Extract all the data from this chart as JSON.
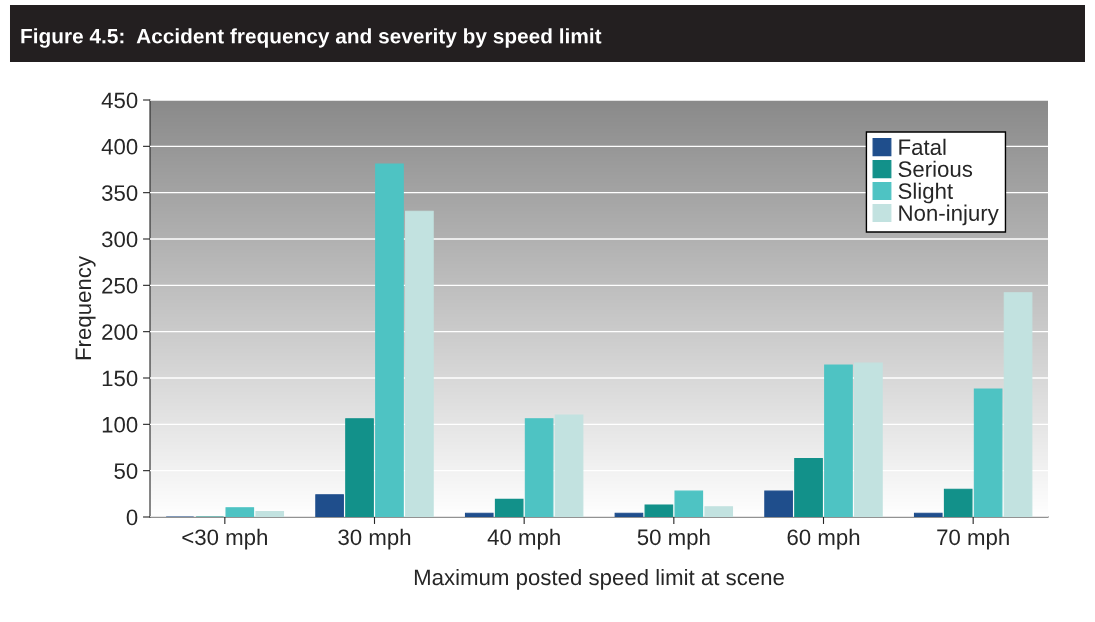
{
  "chart_data": {
    "type": "bar",
    "title": "Figure 4.5:  Accident frequency and severity by speed limit",
    "xlabel": "Maximum posted speed limit at scene",
    "ylabel": "Frequency",
    "categories": [
      "<30 mph",
      "30 mph",
      "40 mph",
      "50 mph",
      "60 mph",
      "70 mph"
    ],
    "series": [
      {
        "name": "Fatal",
        "color": "#1f4e8c",
        "values": [
          0,
          24,
          4,
          4,
          28,
          4
        ]
      },
      {
        "name": "Serious",
        "color": "#12918a",
        "values": [
          0,
          106,
          19,
          13,
          63,
          30
        ]
      },
      {
        "name": "Slight",
        "color": "#4ec3c3",
        "values": [
          10,
          381,
          106,
          28,
          164,
          138
        ]
      },
      {
        "name": "Non-injury",
        "color": "#c2e2e0",
        "values": [
          6,
          330,
          110,
          11,
          166,
          242
        ]
      }
    ],
    "ylim": [
      0,
      450
    ],
    "yticks": [
      0,
      50,
      100,
      150,
      200,
      250,
      300,
      350,
      400,
      450
    ],
    "grid": "y",
    "legend": "top right"
  }
}
